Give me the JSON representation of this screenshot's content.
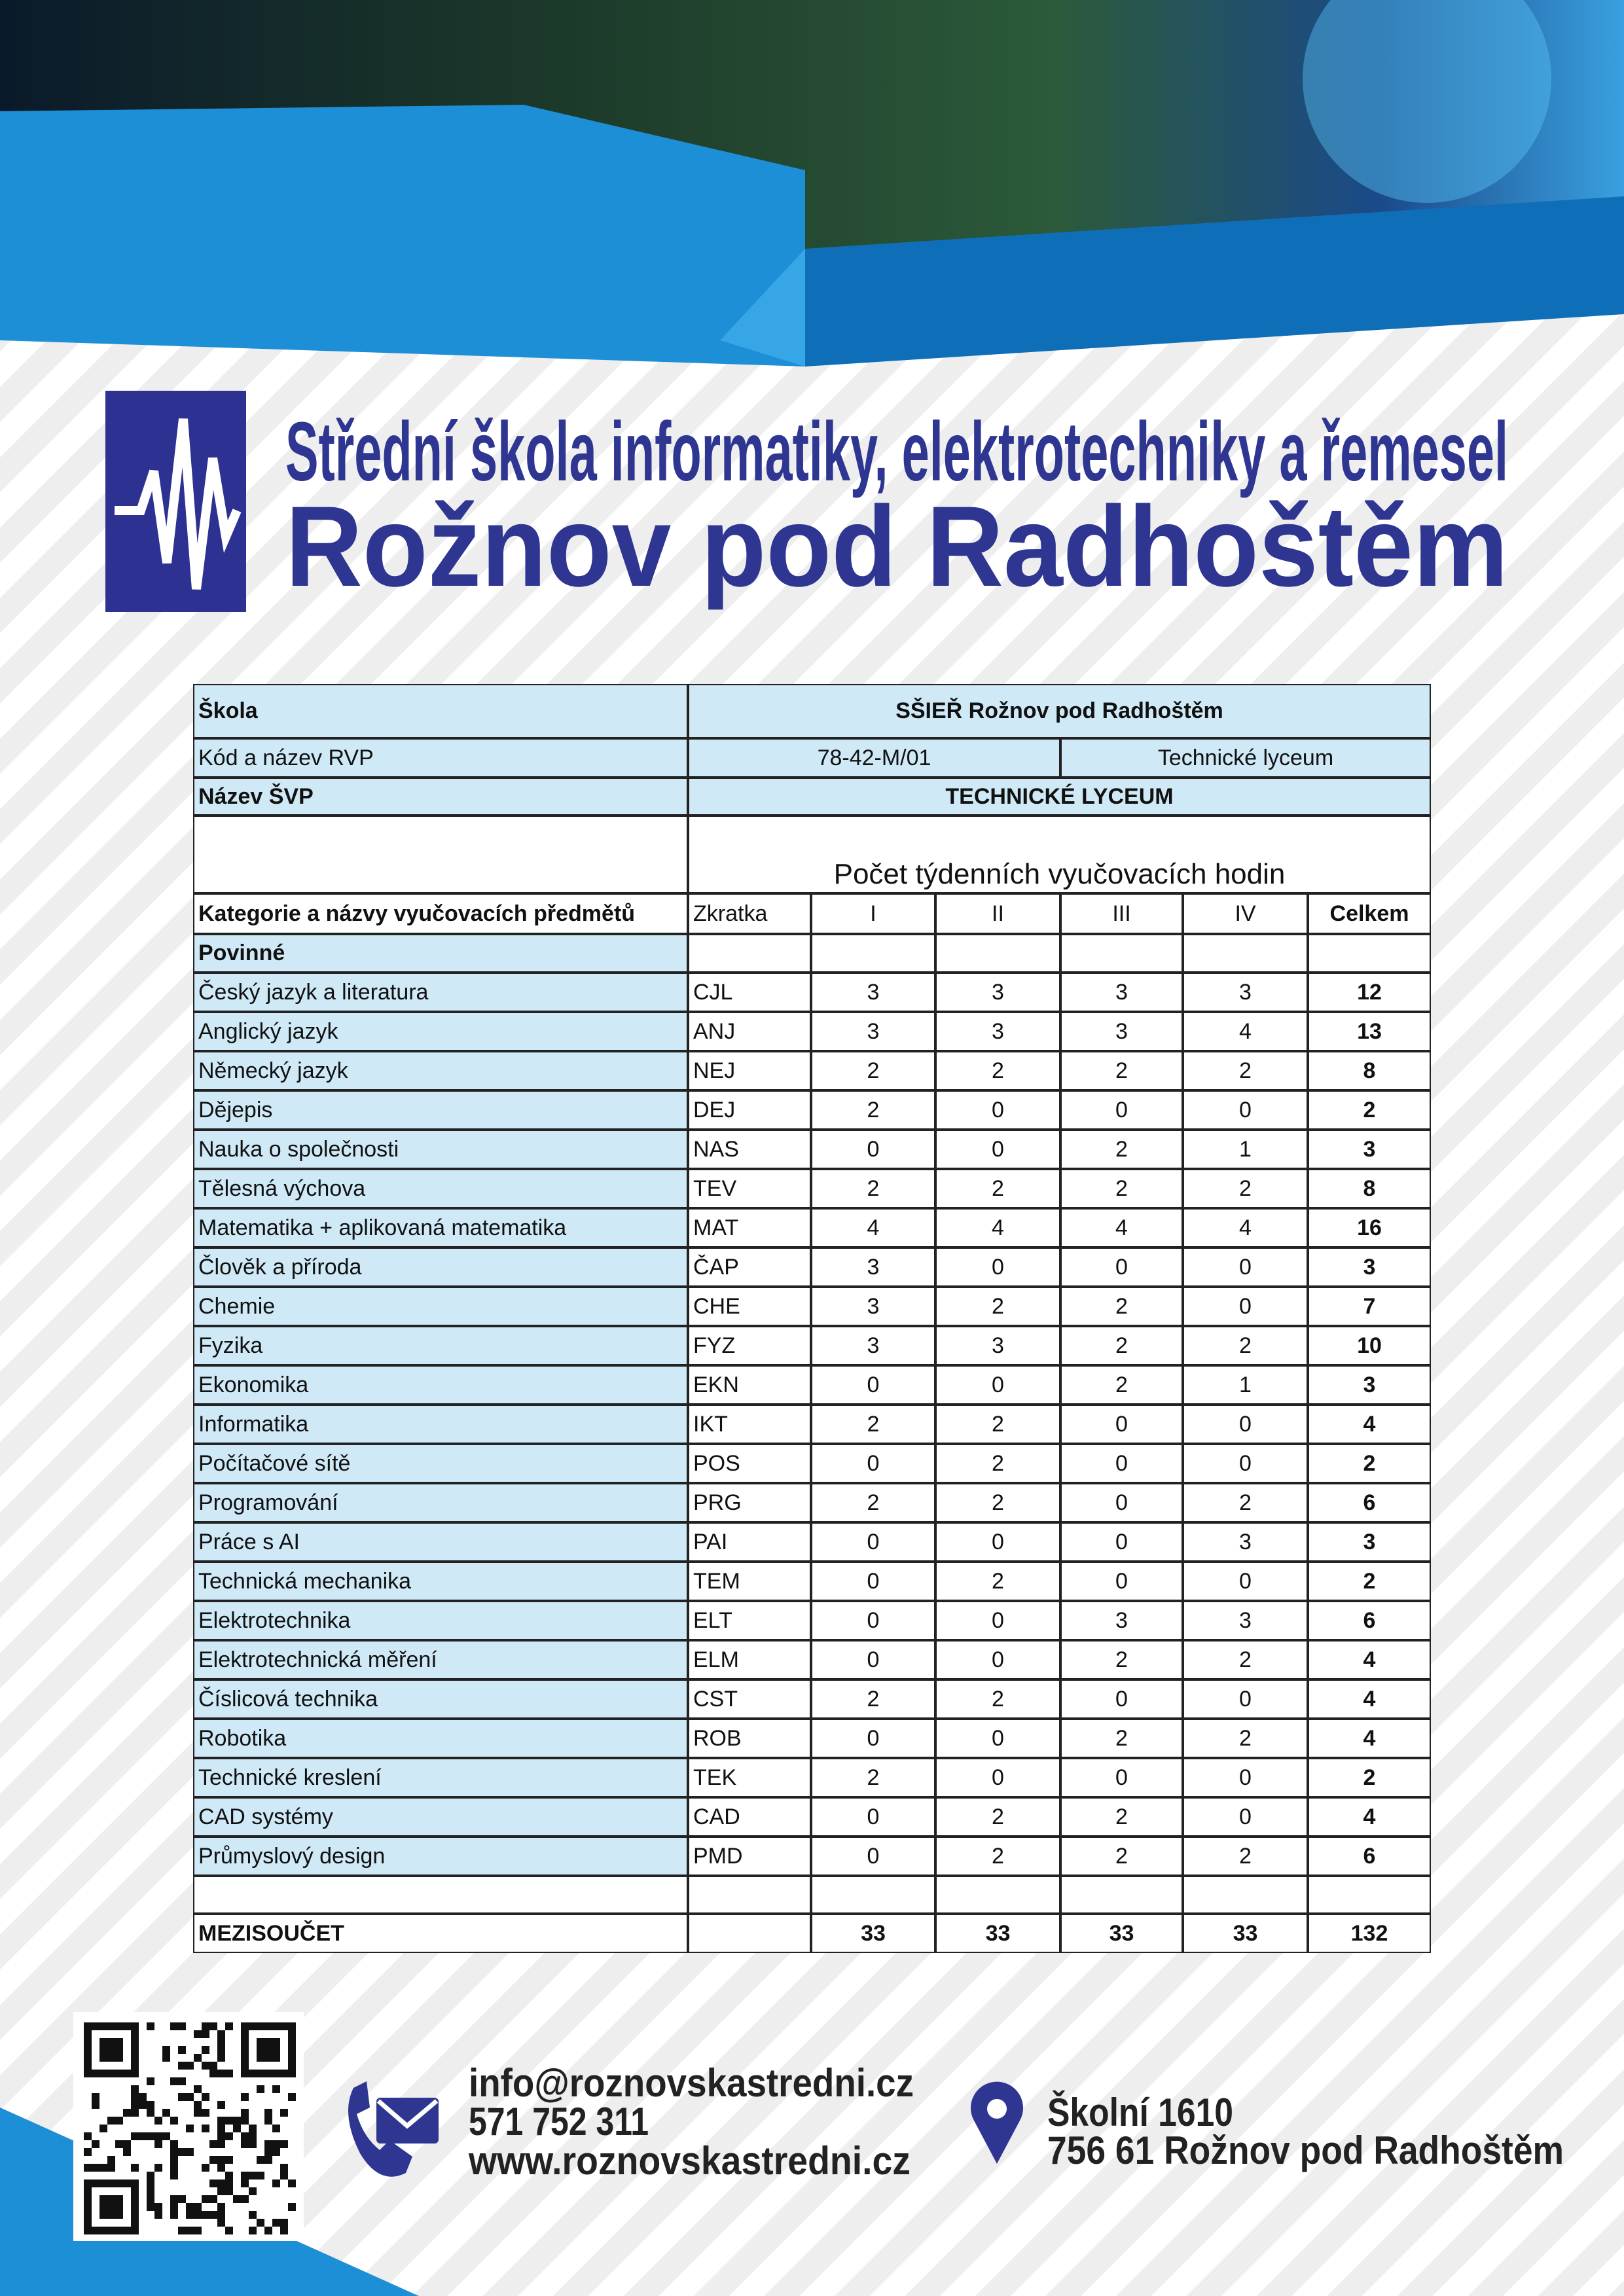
{
  "header": {
    "title": "Střední škola informatiky, elektrotechniky a řemesel",
    "subtitle": "Rožnov pod Radhoštěm"
  },
  "table": {
    "school_label": "Škola",
    "school": "SŠIEŘ Rožnov pod Radhoštěm",
    "rvp_label": "Kód a název RVP",
    "rvp_code": "78-42-M/01",
    "rvp_name": "Technické lyceum",
    "svp_label": "Název ŠVP",
    "svp": "TECHNICKÉ LYCEUM",
    "hours_caption": "Počet týdenních vyučovacích hodin",
    "columns": [
      "Kategorie a názvy vyučovacích předmětů",
      "Zkratka",
      "I",
      "II",
      "III",
      "IV",
      "Celkem"
    ],
    "section": "Povinné",
    "rows": [
      [
        "Český jazyk a literatura",
        "CJL",
        3,
        3,
        3,
        3,
        12
      ],
      [
        "Anglický jazyk",
        "ANJ",
        3,
        3,
        3,
        4,
        13
      ],
      [
        "Německý jazyk",
        "NEJ",
        2,
        2,
        2,
        2,
        8
      ],
      [
        "Dějepis",
        "DEJ",
        2,
        0,
        0,
        0,
        2
      ],
      [
        "Nauka o společnosti",
        "NAS",
        0,
        0,
        2,
        1,
        3
      ],
      [
        "Tělesná výchova",
        "TEV",
        2,
        2,
        2,
        2,
        8
      ],
      [
        "Matematika + aplikovaná matematika",
        "MAT",
        4,
        4,
        4,
        4,
        16
      ],
      [
        "Člověk a příroda",
        "ČAP",
        3,
        0,
        0,
        0,
        3
      ],
      [
        "Chemie",
        "CHE",
        3,
        2,
        2,
        0,
        7
      ],
      [
        "Fyzika",
        "FYZ",
        3,
        3,
        2,
        2,
        10
      ],
      [
        "Ekonomika",
        "EKN",
        0,
        0,
        2,
        1,
        3
      ],
      [
        "Informatika",
        "IKT",
        2,
        2,
        0,
        0,
        4
      ],
      [
        "Počítačové sítě",
        "POS",
        0,
        2,
        0,
        0,
        2
      ],
      [
        "Programování",
        "PRG",
        2,
        2,
        0,
        2,
        6
      ],
      [
        "Práce s AI",
        "PAI",
        0,
        0,
        0,
        3,
        3
      ],
      [
        "Technická mechanika",
        "TEM",
        0,
        2,
        0,
        0,
        2
      ],
      [
        "Elektrotechnika",
        "ELT",
        0,
        0,
        3,
        3,
        6
      ],
      [
        "Elektrotechnická měření",
        "ELM",
        0,
        0,
        2,
        2,
        4
      ],
      [
        "Číslicová technika",
        "CST",
        2,
        2,
        0,
        0,
        4
      ],
      [
        "Robotika",
        "ROB",
        0,
        0,
        2,
        2,
        4
      ],
      [
        "Technické kreslení",
        "TEK",
        2,
        0,
        0,
        0,
        2
      ],
      [
        "CAD systémy",
        "CAD",
        0,
        2,
        2,
        0,
        4
      ],
      [
        "Průmyslový design",
        "PMD",
        0,
        2,
        2,
        2,
        6
      ]
    ],
    "subtotal": [
      "MEZISOUČET",
      33,
      33,
      33,
      33,
      132
    ]
  },
  "footer": {
    "email": "info@roznovskastredni.cz",
    "phone": "571 752 311",
    "web": "www.roznovskastredni.cz",
    "address": [
      "Školní 1610",
      "756 61 Rožnov pod Radhoštěm"
    ]
  }
}
